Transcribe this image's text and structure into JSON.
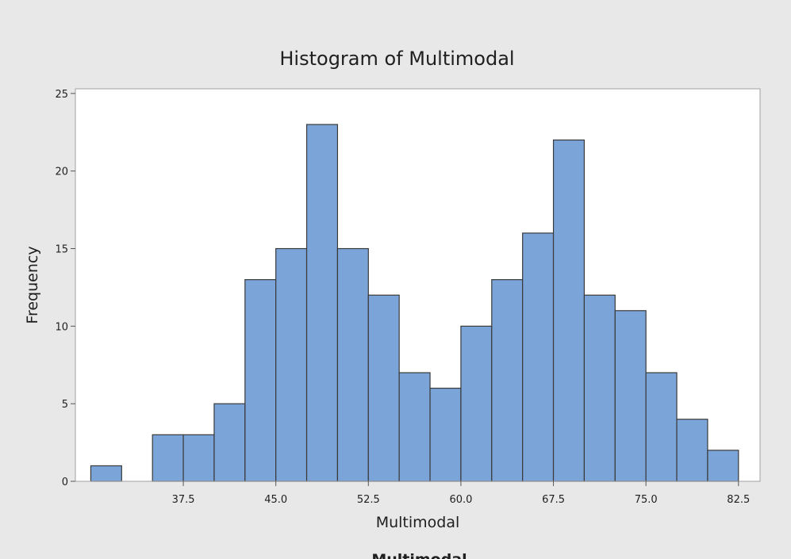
{
  "chart_data": {
    "type": "bar",
    "title": "Histogram of Multimodal",
    "xlabel": "Multimodal",
    "ylabel": "Frequency",
    "bin_width": 2.5,
    "bins": [
      {
        "start": 30.0,
        "end": 32.5,
        "count": 1
      },
      {
        "start": 32.5,
        "end": 35.0,
        "count": 0
      },
      {
        "start": 35.0,
        "end": 37.5,
        "count": 3
      },
      {
        "start": 37.5,
        "end": 40.0,
        "count": 3
      },
      {
        "start": 40.0,
        "end": 42.5,
        "count": 5
      },
      {
        "start": 42.5,
        "end": 45.0,
        "count": 13
      },
      {
        "start": 45.0,
        "end": 47.5,
        "count": 15
      },
      {
        "start": 47.5,
        "end": 50.0,
        "count": 23
      },
      {
        "start": 50.0,
        "end": 52.5,
        "count": 15
      },
      {
        "start": 52.5,
        "end": 55.0,
        "count": 12
      },
      {
        "start": 55.0,
        "end": 57.5,
        "count": 7
      },
      {
        "start": 57.5,
        "end": 60.0,
        "count": 6
      },
      {
        "start": 60.0,
        "end": 62.5,
        "count": 10
      },
      {
        "start": 62.5,
        "end": 65.0,
        "count": 13
      },
      {
        "start": 65.0,
        "end": 67.5,
        "count": 16
      },
      {
        "start": 67.5,
        "end": 70.0,
        "count": 22
      },
      {
        "start": 70.0,
        "end": 72.5,
        "count": 12
      },
      {
        "start": 72.5,
        "end": 75.0,
        "count": 11
      },
      {
        "start": 75.0,
        "end": 77.5,
        "count": 7
      },
      {
        "start": 77.5,
        "end": 80.0,
        "count": 4
      },
      {
        "start": 80.0,
        "end": 82.5,
        "count": 2
      }
    ],
    "xticks": [
      {
        "value": 37.5,
        "label": "37.5"
      },
      {
        "value": 45.0,
        "label": "45.0"
      },
      {
        "value": 52.5,
        "label": "52.5"
      },
      {
        "value": 60.0,
        "label": "60.0"
      },
      {
        "value": 67.5,
        "label": "67.5"
      },
      {
        "value": 75.0,
        "label": "75.0"
      },
      {
        "value": 82.5,
        "label": "82.5"
      }
    ],
    "yticks": [
      {
        "value": 0,
        "label": "0"
      },
      {
        "value": 5,
        "label": "5"
      },
      {
        "value": 10,
        "label": "10"
      },
      {
        "value": 15,
        "label": "15"
      },
      {
        "value": 20,
        "label": "20"
      },
      {
        "value": 25,
        "label": "25"
      }
    ],
    "xlim": [
      28.75,
      84.25
    ],
    "ylim": [
      0,
      25.3
    ],
    "grid": false,
    "legend": "none"
  },
  "colors": {
    "background": "#e8e8e8",
    "plot_area": "#ffffff",
    "bar_fill": "#7ba4d9",
    "bar_edge": "#3a3a3a",
    "frame": "#a0a0a0"
  },
  "footer_caption": "Multimodal"
}
